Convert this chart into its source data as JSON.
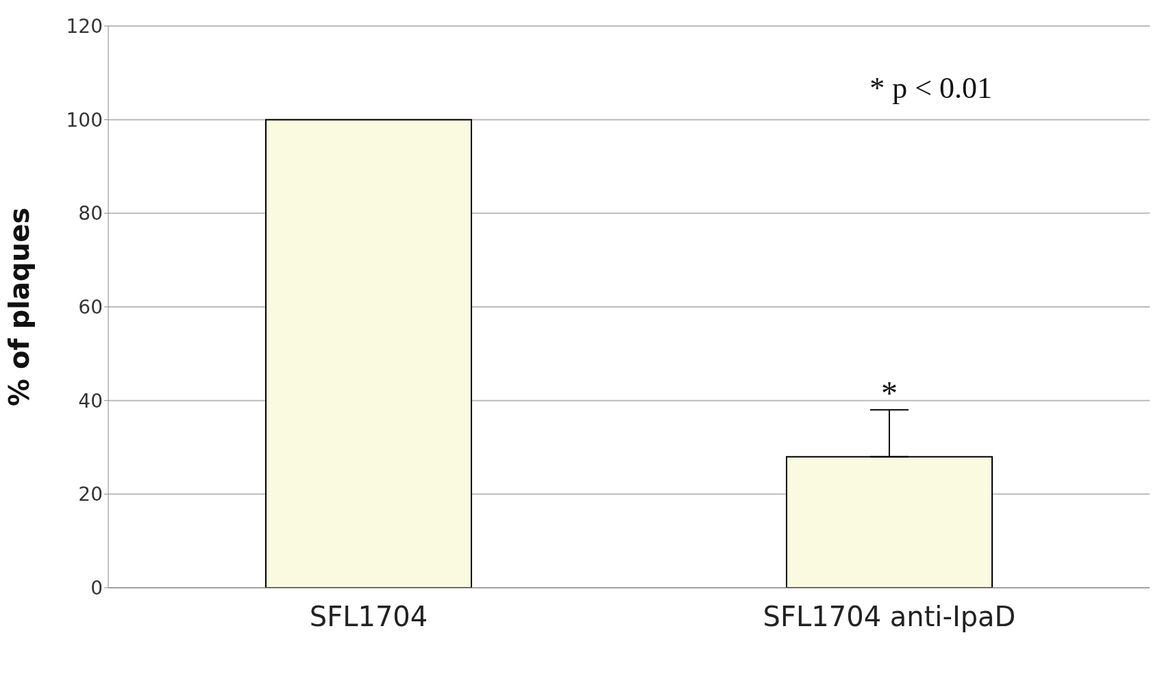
{
  "chart_data": {
    "type": "bar",
    "ylabel": "%  of plaques",
    "categories": [
      "SFL1704",
      "SFL1704 anti-IpaD"
    ],
    "values": [
      100,
      28
    ],
    "errors": [
      null,
      [
        28,
        38
      ]
    ],
    "color": "#fafae0",
    "ylim": [
      0,
      120
    ],
    "yticks": [
      0,
      20,
      40,
      60,
      80,
      100,
      120
    ],
    "grid": "y",
    "annotations": [
      "* p < 0.01",
      {
        "text": "*",
        "x": "SFL1704 anti-IpaD",
        "y": 38
      }
    ]
  }
}
